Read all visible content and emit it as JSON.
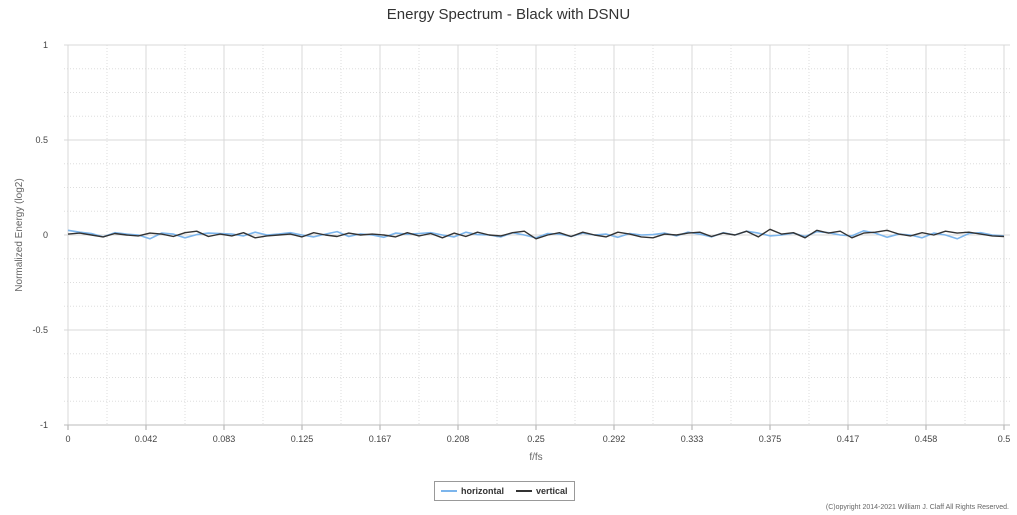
{
  "chart_data": {
    "type": "line",
    "title": "Energy Spectrum - Black with DSNU",
    "xlabel": "f/fs",
    "ylabel": "Normalized Energy (log2)",
    "xlim": [
      0,
      0.5
    ],
    "ylim": [
      -1,
      1
    ],
    "x_ticks": [
      "0",
      "0.042",
      "0.083",
      "0.125",
      "0.167",
      "0.208",
      "0.25",
      "0.292",
      "0.333",
      "0.375",
      "0.417",
      "0.458",
      "0.5"
    ],
    "y_ticks": [
      "1",
      "0.5",
      "0",
      "-0.5",
      "-1"
    ],
    "grid": true,
    "legend_position": "bottom-center",
    "x": [
      0,
      0.00625,
      0.0125,
      0.01875,
      0.025,
      0.03125,
      0.0375,
      0.04375,
      0.05,
      0.05625,
      0.0625,
      0.06875,
      0.075,
      0.08125,
      0.0875,
      0.09375,
      0.1,
      0.10625,
      0.1125,
      0.11875,
      0.125,
      0.13125,
      0.1375,
      0.14375,
      0.15,
      0.15625,
      0.1625,
      0.16875,
      0.175,
      0.18125,
      0.1875,
      0.19375,
      0.2,
      0.20625,
      0.2125,
      0.21875,
      0.225,
      0.23125,
      0.2375,
      0.24375,
      0.25,
      0.25625,
      0.2625,
      0.26875,
      0.275,
      0.28125,
      0.2875,
      0.29375,
      0.3,
      0.30625,
      0.3125,
      0.31875,
      0.325,
      0.33125,
      0.3375,
      0.34375,
      0.35,
      0.35625,
      0.3625,
      0.36875,
      0.375,
      0.38125,
      0.3875,
      0.39375,
      0.4,
      0.40625,
      0.4125,
      0.41875,
      0.425,
      0.43125,
      0.4375,
      0.44375,
      0.45,
      0.45625,
      0.4625,
      0.46875,
      0.475,
      0.48125,
      0.4875,
      0.49375,
      0.5
    ],
    "series": [
      {
        "name": "horizontal",
        "color": "#7cb5ec",
        "values": [
          0.025,
          0.015,
          0.008,
          -0.01,
          0.012,
          0.005,
          0.0,
          -0.02,
          0.01,
          0.005,
          -0.015,
          0.002,
          0.01,
          0.008,
          0.005,
          -0.005,
          0.015,
          0.0,
          0.005,
          0.012,
          0.0,
          -0.01,
          0.005,
          0.018,
          -0.008,
          0.006,
          0.0,
          -0.012,
          0.01,
          0.004,
          0.008,
          0.012,
          0.0,
          -0.01,
          0.015,
          0.002,
          0.0,
          -0.01,
          0.012,
          0.0,
          -0.015,
          0.008,
          0.005,
          -0.008,
          0.01,
          0.0,
          0.005,
          -0.012,
          0.008,
          0.0,
          0.002,
          0.01,
          -0.005,
          0.015,
          0.005,
          -0.01,
          0.012,
          0.0,
          0.02,
          0.01,
          -0.005,
          0.0,
          0.01,
          -0.008,
          0.018,
          0.012,
          0.0,
          -0.005,
          0.022,
          0.01,
          -0.012,
          0.005,
          0.0,
          -0.015,
          0.01,
          0.0,
          -0.02,
          0.008,
          0.012,
          0.0,
          -0.005
        ]
      },
      {
        "name": "vertical",
        "color": "#333333",
        "values": [
          0.005,
          0.01,
          0.0,
          -0.01,
          0.008,
          0.0,
          -0.005,
          0.01,
          0.005,
          -0.008,
          0.012,
          0.02,
          -0.008,
          0.005,
          -0.005,
          0.012,
          -0.015,
          -0.005,
          0.0,
          0.005,
          -0.01,
          0.012,
          0.0,
          -0.008,
          0.01,
          0.0,
          0.005,
          0.0,
          -0.01,
          0.012,
          -0.005,
          0.008,
          -0.015,
          0.01,
          -0.008,
          0.015,
          0.0,
          -0.005,
          0.012,
          0.02,
          -0.02,
          0.0,
          0.012,
          -0.008,
          0.015,
          0.0,
          -0.01,
          0.015,
          0.005,
          -0.01,
          -0.015,
          0.005,
          0.0,
          0.01,
          0.015,
          -0.008,
          0.01,
          0.0,
          0.02,
          -0.01,
          0.03,
          0.005,
          0.012,
          -0.015,
          0.025,
          0.01,
          0.02,
          -0.015,
          0.01,
          0.015,
          0.025,
          0.005,
          -0.005,
          0.012,
          0.0,
          0.02,
          0.01,
          0.015,
          0.005,
          -0.005,
          -0.008
        ]
      }
    ],
    "copyright": "(C)opyright 2014-2021 William J. Claff All Rights Reserved."
  }
}
